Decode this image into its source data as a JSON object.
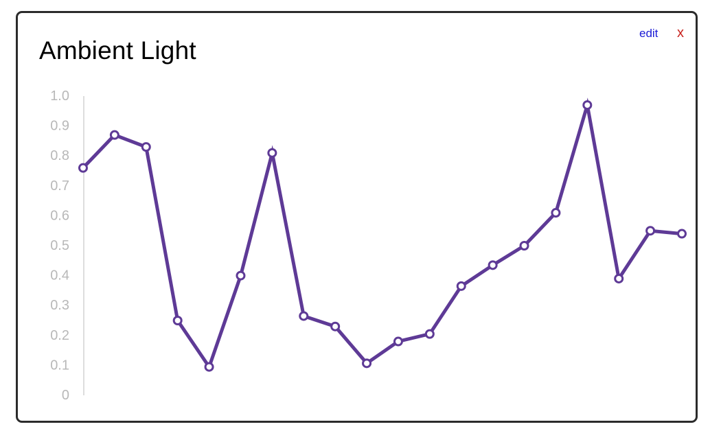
{
  "widget": {
    "title": "Ambient Light",
    "edit_label": "edit",
    "close_label": "x"
  },
  "colors": {
    "line": "#5e3a96",
    "marker_fill": "#ffffff",
    "axis": "#dddddd",
    "tick_text": "#b8b8b8",
    "edit_link": "#1a1ad6",
    "close_link": "#c9231e"
  },
  "chart_data": {
    "type": "line",
    "title": "Ambient Light",
    "xlabel": "",
    "ylabel": "",
    "ylim": [
      0,
      1.0
    ],
    "yticks": [
      "0",
      "0.1",
      "0.2",
      "0.3",
      "0.4",
      "0.5",
      "0.6",
      "0.7",
      "0.8",
      "0.9",
      "1.0"
    ],
    "grid": false,
    "legend": "none",
    "series": [
      {
        "values": [
          0.76,
          0.87,
          0.83,
          0.25,
          0.095,
          0.4,
          0.81,
          0.265,
          0.23,
          0.107,
          0.18,
          0.205,
          0.365,
          0.435,
          0.5,
          0.61,
          0.97,
          0.39,
          0.55,
          0.54
        ]
      }
    ]
  }
}
